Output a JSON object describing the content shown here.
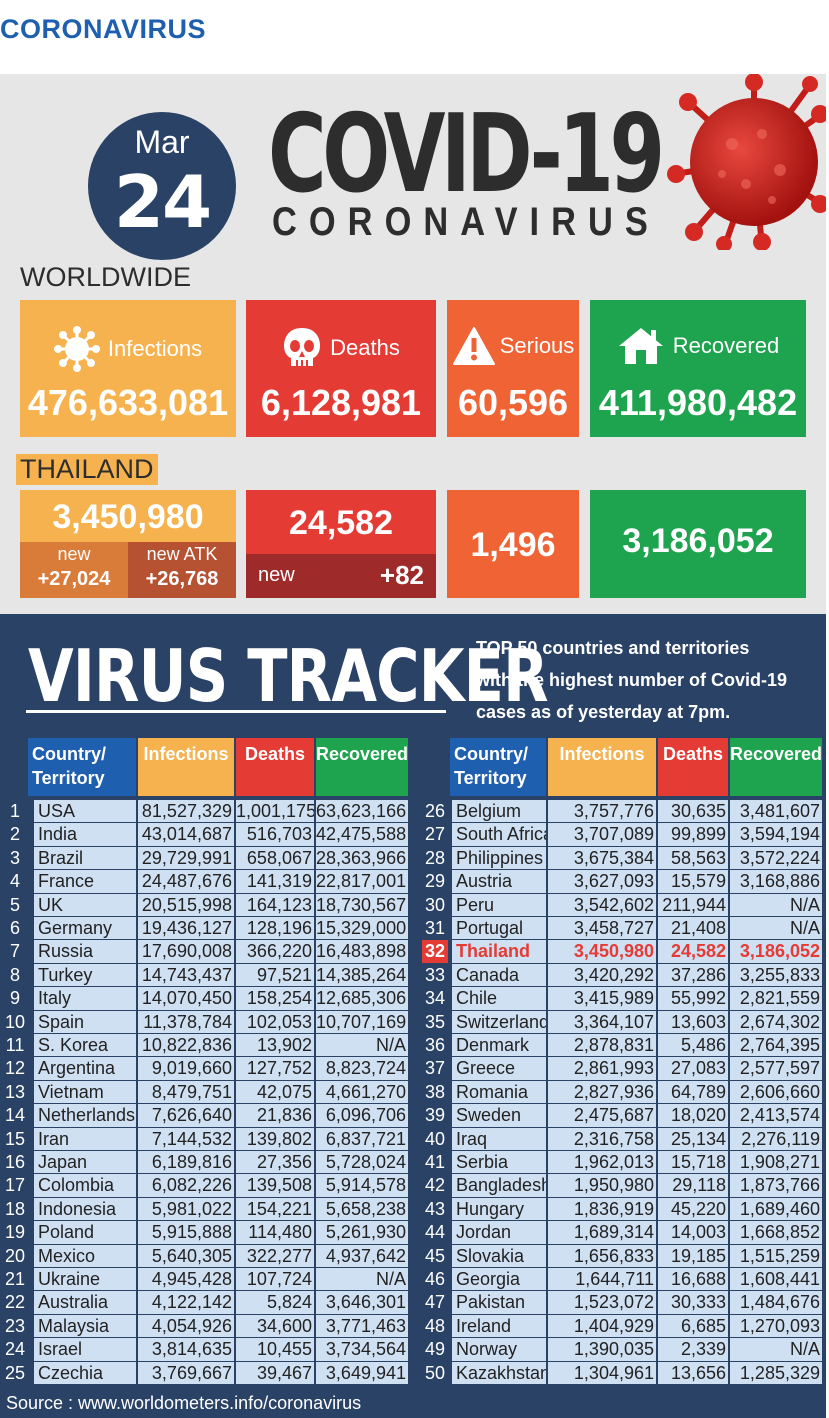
{
  "header": {
    "section": "CORONAVIRUS"
  },
  "date": {
    "month": "Mar",
    "day": "24"
  },
  "title": {
    "main": "COVID-19",
    "sub": "CORONAVIRUS"
  },
  "worldwide": {
    "label": "WORLDWIDE",
    "infections": {
      "label": "Infections",
      "value": "476,633,081"
    },
    "deaths": {
      "label": "Deaths",
      "value": "6,128,981"
    },
    "serious": {
      "label": "Serious",
      "value": "60,596"
    },
    "recovered": {
      "label": "Recovered",
      "value": "411,980,482"
    }
  },
  "thailand": {
    "label": "THAILAND",
    "infections": "3,450,980",
    "new_label": "new",
    "new_value": "+27,024",
    "new_atk_label": "new ATK",
    "new_atk_value": "+26,768",
    "deaths": "24,582",
    "deaths_new_label": "new",
    "deaths_new_value": "+82",
    "serious": "1,496",
    "recovered": "3,186,052"
  },
  "tracker": {
    "title": "VIRUS TRACKER",
    "desc_bold": "TOP 50",
    "desc_rest1": " countries and territories",
    "desc_line2": "with the highest number of Covid-19",
    "desc_line3": "cases as of yesterday at 7pm."
  },
  "table": {
    "col_country": "Country/",
    "col_country2": "Territory",
    "col_infections": "Infections",
    "col_deaths": "Deaths",
    "col_recovered": "Recovered",
    "left": [
      [
        "1",
        "USA",
        "81,527,329",
        "1,001,175",
        "63,623,166"
      ],
      [
        "2",
        "India",
        "43,014,687",
        "516,703",
        "42,475,588"
      ],
      [
        "3",
        "Brazil",
        "29,729,991",
        "658,067",
        "28,363,966"
      ],
      [
        "4",
        "France",
        "24,487,676",
        "141,319",
        "22,817,001"
      ],
      [
        "5",
        "UK",
        "20,515,998",
        "164,123",
        "18,730,567"
      ],
      [
        "6",
        "Germany",
        "19,436,127",
        "128,196",
        "15,329,000"
      ],
      [
        "7",
        "Russia",
        "17,690,008",
        "366,220",
        "16,483,898"
      ],
      [
        "8",
        "Turkey",
        "14,743,437",
        "97,521",
        "14,385,264"
      ],
      [
        "9",
        "Italy",
        "14,070,450",
        "158,254",
        "12,685,306"
      ],
      [
        "10",
        "Spain",
        "11,378,784",
        "102,053",
        "10,707,169"
      ],
      [
        "11",
        "S. Korea",
        "10,822,836",
        "13,902",
        "N/A"
      ],
      [
        "12",
        "Argentina",
        "9,019,660",
        "127,752",
        "8,823,724"
      ],
      [
        "13",
        "Vietnam",
        "8,479,751",
        "42,075",
        "4,661,270"
      ],
      [
        "14",
        "Netherlands",
        "7,626,640",
        "21,836",
        "6,096,706"
      ],
      [
        "15",
        "Iran",
        "7,144,532",
        "139,802",
        "6,837,721"
      ],
      [
        "16",
        "Japan",
        "6,189,816",
        "27,356",
        "5,728,024"
      ],
      [
        "17",
        "Colombia",
        "6,082,226",
        "139,508",
        "5,914,578"
      ],
      [
        "18",
        "Indonesia",
        "5,981,022",
        "154,221",
        "5,658,238"
      ],
      [
        "19",
        "Poland",
        "5,915,888",
        "114,480",
        "5,261,930"
      ],
      [
        "20",
        "Mexico",
        "5,640,305",
        "322,277",
        "4,937,642"
      ],
      [
        "21",
        "Ukraine",
        "4,945,428",
        "107,724",
        "N/A"
      ],
      [
        "22",
        "Australia",
        "4,122,142",
        "5,824",
        "3,646,301"
      ],
      [
        "23",
        "Malaysia",
        "4,054,926",
        "34,600",
        "3,771,463"
      ],
      [
        "24",
        "Israel",
        "3,814,635",
        "10,455",
        "3,734,564"
      ],
      [
        "25",
        "Czechia",
        "3,769,667",
        "39,467",
        "3,649,941"
      ]
    ],
    "right": [
      [
        "26",
        "Belgium",
        "3,757,776",
        "30,635",
        "3,481,607"
      ],
      [
        "27",
        "South Africa",
        "3,707,089",
        "99,899",
        "3,594,194"
      ],
      [
        "28",
        "Philippines",
        "3,675,384",
        "58,563",
        "3,572,224"
      ],
      [
        "29",
        "Austria",
        "3,627,093",
        "15,579",
        "3,168,886"
      ],
      [
        "30",
        "Peru",
        "3,542,602",
        "211,944",
        "N/A"
      ],
      [
        "31",
        "Portugal",
        "3,458,727",
        "21,408",
        "N/A"
      ],
      [
        "32",
        "Thailand",
        "3,450,980",
        "24,582",
        "3,186,052"
      ],
      [
        "33",
        "Canada",
        "3,420,292",
        "37,286",
        "3,255,833"
      ],
      [
        "34",
        "Chile",
        "3,415,989",
        "55,992",
        "2,821,559"
      ],
      [
        "35",
        "Switzerland",
        "3,364,107",
        "13,603",
        "2,674,302"
      ],
      [
        "36",
        "Denmark",
        "2,878,831",
        "5,486",
        "2,764,395"
      ],
      [
        "37",
        "Greece",
        "2,861,993",
        "27,083",
        "2,577,597"
      ],
      [
        "38",
        "Romania",
        "2,827,936",
        "64,789",
        "2,606,660"
      ],
      [
        "39",
        "Sweden",
        "2,475,687",
        "18,020",
        "2,413,574"
      ],
      [
        "40",
        "Iraq",
        "2,316,758",
        "25,134",
        "2,276,119"
      ],
      [
        "41",
        "Serbia",
        "1,962,013",
        "15,718",
        "1,908,271"
      ],
      [
        "42",
        "Bangladesh",
        "1,950,980",
        "29,118",
        "1,873,766"
      ],
      [
        "43",
        "Hungary",
        "1,836,919",
        "45,220",
        "1,689,460"
      ],
      [
        "44",
        "Jordan",
        "1,689,314",
        "14,003",
        "1,668,852"
      ],
      [
        "45",
        "Slovakia",
        "1,656,833",
        "19,185",
        "1,515,259"
      ],
      [
        "46",
        "Georgia",
        "1,644,711",
        "16,688",
        "1,608,441"
      ],
      [
        "47",
        "Pakistan",
        "1,523,072",
        "30,333",
        "1,484,676"
      ],
      [
        "48",
        "Ireland",
        "1,404,929",
        "6,685",
        "1,270,093"
      ],
      [
        "49",
        "Norway",
        "1,390,035",
        "2,339",
        "N/A"
      ],
      [
        "50",
        "Kazakhstan",
        "1,304,961",
        "13,656",
        "1,285,329"
      ]
    ],
    "highlight_country": "Thailand"
  },
  "footer": {
    "source": "Source : www.worldometers.info/coronavirus"
  },
  "colors": {
    "navy": "#2a4266",
    "blue": "#1f5fb0",
    "orange": "#f6b24f",
    "red": "#e53b35",
    "tomato": "#ef6334",
    "green": "#1ea34e",
    "row_bg": "#cfe0f3"
  },
  "icons": [
    "virus-icon",
    "skull-icon",
    "warning-icon",
    "house-icon",
    "coronavirus-illustration"
  ]
}
